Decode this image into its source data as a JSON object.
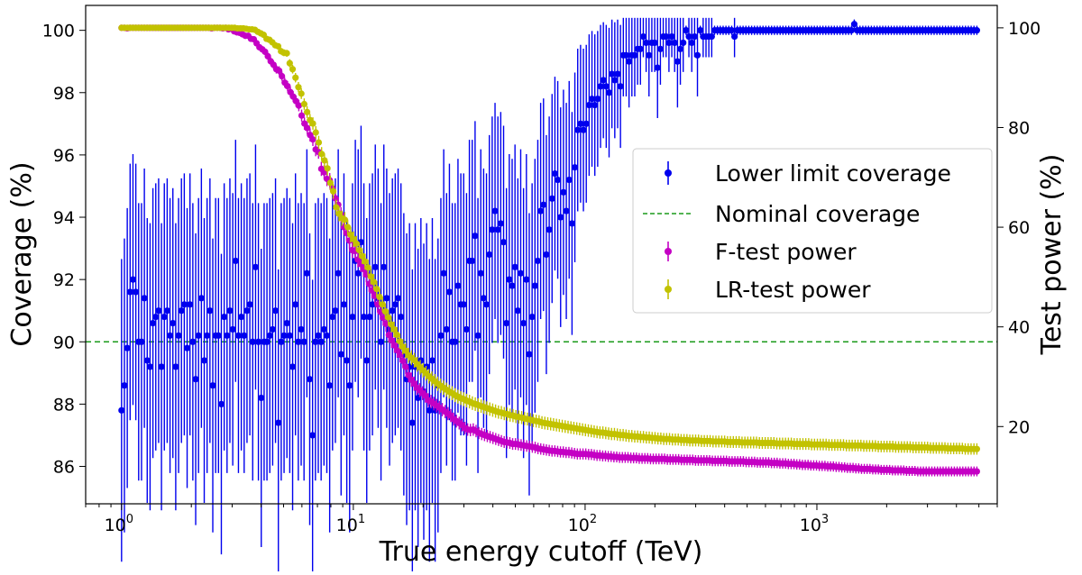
{
  "chart_data": {
    "type": "scatter",
    "title": "",
    "xlabel": "True energy cutoff (TeV)",
    "ylabel": "Coverage (%)",
    "y2label": "Test power (%)",
    "xscale": "log",
    "xlim": [
      0.7,
      6000
    ],
    "ylim": [
      84.8,
      100.8
    ],
    "y2lim": [
      4.5,
      104.5
    ],
    "grid": false,
    "legend_position": "center-right",
    "x_ticks": [
      {
        "value": 1,
        "base": "10",
        "exp": "0"
      },
      {
        "value": 10,
        "base": "10",
        "exp": "1"
      },
      {
        "value": 100,
        "base": "10",
        "exp": "2"
      },
      {
        "value": 1000,
        "base": "10",
        "exp": "3"
      }
    ],
    "y_ticks": [
      "86",
      "88",
      "90",
      "92",
      "94",
      "96",
      "98",
      "100"
    ],
    "y2_ticks": [
      "20",
      "40",
      "60",
      "80",
      "100"
    ],
    "nominal_coverage": 90,
    "series": [
      {
        "name": "Lower limit coverage",
        "color": "#0000ee",
        "axis": "left",
        "style": "errorbar",
        "x_start": 1.0,
        "x_end": 4900,
        "values": [
          87.8,
          88.6,
          89.8,
          91.6,
          92.0,
          91.6,
          90.0,
          90.0,
          91.4,
          89.4,
          89.2,
          90.6,
          90.8,
          91.0,
          89.2,
          90.8,
          91.0,
          90.2,
          90.6,
          89.2,
          90.2,
          91.0,
          91.2,
          89.8,
          91.2,
          90.0,
          88.8,
          90.2,
          91.4,
          89.4,
          90.2,
          91.0,
          88.6,
          90.2,
          90.2,
          88.0,
          90.8,
          90.2,
          91.0,
          90.4,
          92.6,
          90.2,
          90.8,
          90.2,
          91.0,
          91.2,
          90.0,
          92.4,
          90.0,
          88.2,
          90.0,
          90.0,
          90.2,
          90.4,
          91.0,
          87.4,
          90.0,
          90.2,
          90.6,
          90.2,
          89.2,
          91.2,
          90.0,
          90.4,
          90.0,
          92.2,
          88.8,
          87.0,
          90.0,
          90.2,
          90.0,
          90.4,
          90.2,
          88.6,
          90.8,
          91.0,
          92.2,
          89.6,
          91.2,
          89.4,
          88.6,
          90.8,
          92.6,
          92.2,
          93.2,
          90.8,
          89.4,
          90.8,
          91.2,
          92.4,
          91.4,
          90.0,
          92.4,
          91.4,
          90.4,
          91.0,
          91.2,
          91.4,
          90.8,
          89.6,
          88.8,
          89.2,
          87.4,
          89.2,
          88.2,
          89.4,
          88.4,
          89.2,
          87.8,
          89.4,
          87.8,
          88.6,
          90.2,
          92.2,
          90.4,
          91.6,
          90.0,
          90.0,
          91.8,
          91.2,
          91.2,
          90.4,
          92.6,
          92.6,
          93.4,
          90.2,
          92.2,
          91.4,
          91.2,
          92.8,
          93.6,
          94.2,
          93.6,
          93.8,
          93.2,
          90.6,
          92.0,
          91.8,
          92.4,
          91.0,
          92.2,
          90.6,
          92.0,
          89.6,
          90.8,
          91.8,
          92.6,
          94.2,
          94.4,
          92.8,
          93.6,
          94.6,
          95.4,
          95.2,
          94.0,
          94.8,
          94.2,
          95.2,
          93.8,
          95.6,
          96.8,
          97.0,
          96.8,
          97.0,
          97.6,
          97.8,
          97.6,
          97.8,
          98.2,
          98.4,
          98.2,
          98.0,
          98.6,
          98.4,
          98.6,
          98.2,
          99.2,
          99.2,
          99.0,
          99.2,
          99.2,
          99.4,
          99.4,
          99.8,
          99.6,
          99.2,
          99.6,
          99.6,
          98.8,
          99.4,
          99.8,
          99.8,
          99.6,
          99.8,
          99.6,
          99.0,
          99.4,
          99.6,
          100.0,
          99.8,
          99.6,
          99.8,
          99.2,
          100.0,
          99.8,
          99.8,
          99.8,
          99.8,
          100.0,
          100.0,
          100.0,
          100.0,
          100.0,
          100.0,
          100.0,
          99.8,
          100.0,
          100.0,
          100.0,
          100.0,
          100.0,
          100.0,
          100.0,
          100.0,
          100.0,
          100.0,
          100.0,
          100.0,
          100.0,
          100.0,
          100.0,
          100.0,
          100.0,
          100.0,
          100.0,
          100.0,
          100.0,
          100.0,
          100.0,
          100.0,
          100.0,
          100.0,
          100.0,
          100.0,
          100.0,
          100.0,
          100.0,
          100.0,
          100.0,
          100.0,
          100.0,
          100.0,
          100.0,
          100.0,
          100.0,
          100.0,
          100.0,
          100.2,
          100.0,
          100.0,
          100.0,
          100.0,
          100.0,
          100.0,
          100.0,
          100.0,
          100.0,
          100.0,
          100.0,
          100.0,
          100.0,
          100.0,
          100.0,
          100.0,
          100.0,
          100.0,
          100.0,
          100.0,
          100.0,
          100.0,
          100.0,
          100.0,
          100.0,
          100.0,
          100.0,
          100.0,
          100.0,
          100.0,
          100.0,
          100.0,
          100.0,
          100.0,
          100.0,
          100.0,
          100.0,
          100.0,
          100.0,
          100.0,
          100.0,
          100.0,
          100.0
        ]
      },
      {
        "name": "Nominal coverage",
        "color": "#1a9a1a",
        "axis": "left",
        "style": "dashed-line",
        "values": [
          90
        ]
      },
      {
        "name": "F-test power",
        "color": "#c400c4",
        "axis": "right",
        "style": "errorbar",
        "x_start": 1.0,
        "x_end": 4900,
        "values": [
          100,
          100,
          99.9,
          100,
          100,
          100,
          100,
          100,
          100,
          100,
          100,
          100,
          100,
          100,
          100,
          100,
          100,
          100,
          100,
          100,
          100,
          100,
          100,
          100,
          100,
          100,
          100,
          100,
          100,
          100,
          100,
          100,
          99.9,
          100,
          100,
          100,
          99.9,
          100,
          99.7,
          99.9,
          99.3,
          99.1,
          99.0,
          98.7,
          98.4,
          98.4,
          97.8,
          97.7,
          96.9,
          96.1,
          95.7,
          95.2,
          94.3,
          93.3,
          92.6,
          91.7,
          91.4,
          90.3,
          89.0,
          88.3,
          87.1,
          86.2,
          85.3,
          84.4,
          82.4,
          80.8,
          79.9,
          78.5,
          77.6,
          75.6,
          75.1,
          71.7,
          71.0,
          69.7,
          69.4,
          67.8,
          65.8,
          64.5,
          62.5,
          60.0,
          58.8,
          57.3,
          55.4,
          55.2,
          53.5,
          52.6,
          51.6,
          50.5,
          48.6,
          47.3,
          46.2,
          44.5,
          43.0,
          41.8,
          40.6,
          38.4,
          37.3,
          36.3,
          35.3,
          34.4,
          33.2,
          32.0,
          30.3,
          29.4,
          28.6,
          27.8,
          27.3,
          26.7,
          26.2,
          25.3,
          25.0,
          24.6,
          24.2,
          23.8,
          23.4,
          23.0,
          22.6,
          22.2,
          21.5,
          21.1,
          20.7,
          20.3,
          19.7,
          19.4,
          19.3,
          19.4,
          19.1,
          18.7,
          18.5,
          18.3,
          18.1,
          17.9,
          17.7,
          17.5,
          17.3,
          17.1,
          16.9,
          16.8,
          16.7,
          16.5,
          16.5,
          16.4,
          16.3,
          16.2,
          16.1,
          16.0,
          15.9,
          15.8,
          15.6,
          15.5,
          15.4,
          15.3,
          15.2,
          15.1,
          15.1,
          15.0,
          14.9,
          14.9,
          14.8,
          14.8,
          14.7,
          14.6,
          14.5,
          14.5,
          14.5,
          14.5,
          14.4,
          14.4,
          14.3,
          14.2,
          14.2,
          14.1,
          14.1,
          14.0,
          14.0,
          13.9,
          13.9,
          13.8,
          13.8,
          13.8,
          13.8,
          13.7,
          13.7,
          13.7,
          13.6,
          13.6,
          13.6,
          13.6,
          13.5,
          13.5,
          13.5,
          13.5,
          13.5,
          13.5,
          13.4,
          13.4,
          13.4,
          13.4,
          13.4,
          13.3,
          13.3,
          13.3,
          13.3,
          13.3,
          13.2,
          13.2,
          13.2,
          13.2,
          13.2,
          13.2,
          13.1,
          13.1,
          13.1,
          13.1,
          13.1,
          13.1,
          13.0,
          13.0,
          13.0,
          13.0,
          13.0,
          13.0,
          12.9,
          12.9,
          12.9,
          12.9,
          12.8,
          12.8,
          12.8,
          12.8,
          12.8,
          12.7,
          12.7,
          12.7,
          12.6,
          12.6,
          12.6,
          12.5,
          12.5,
          12.5,
          12.4,
          12.4,
          12.3,
          12.3,
          12.3,
          12.2,
          12.2,
          12.2,
          12.1,
          12.1,
          12.1,
          12.0,
          12.0,
          12.0,
          11.9,
          11.9,
          11.8,
          11.8,
          11.7,
          11.7,
          11.7,
          11.6,
          11.6,
          11.5,
          11.5,
          11.5,
          11.5,
          11.4,
          11.4,
          11.4,
          11.3,
          11.3,
          11.3,
          11.3,
          11.2,
          11.2,
          11.2,
          11.2,
          11.2,
          11.1,
          11.1,
          11.1,
          11.1,
          11.0,
          11.0,
          11.0,
          11.0,
          11.0,
          11.0,
          11.0,
          11.0,
          11.0,
          11.0,
          11.0,
          11.0,
          11.0,
          11.0,
          11.0,
          11.0,
          11.0,
          11.0,
          11.0,
          11.0,
          11.0,
          11.0
        ]
      },
      {
        "name": "LR-test power",
        "color": "#c2c200",
        "axis": "right",
        "style": "errorbar",
        "x_start": 1.0,
        "x_end": 4900,
        "values": [
          100,
          100,
          100,
          100,
          100,
          100,
          100,
          100,
          100,
          100,
          100,
          100,
          100,
          100,
          100,
          100,
          100,
          100,
          100,
          100,
          100,
          100,
          100,
          100,
          100,
          100,
          100,
          100,
          100,
          100,
          100,
          100,
          100,
          100,
          100,
          100,
          100,
          100,
          100,
          100,
          99.9,
          99.9,
          99.9,
          99.8,
          99.7,
          99.7,
          99.6,
          99.2,
          98.9,
          98.6,
          97.8,
          97.6,
          97.1,
          96.5,
          96.3,
          95.3,
          95.0,
          94.9,
          92.9,
          91.7,
          90.0,
          88.1,
          86.8,
          84.7,
          83.1,
          81.5,
          80.8,
          79.0,
          77.0,
          74.7,
          73.4,
          71.8,
          68.9,
          67.2,
          64.0,
          62.7,
          61.8,
          61.5,
          60.0,
          58.5,
          57.6,
          56.7,
          55.4,
          54.2,
          53.1,
          51.9,
          50.1,
          49.0,
          47.6,
          46.0,
          44.5,
          43.1,
          41.9,
          40.5,
          39.5,
          38.4,
          37.1,
          36.0,
          35.2,
          34.3,
          33.8,
          33.3,
          32.5,
          31.9,
          31.3,
          30.7,
          30.1,
          29.6,
          29.1,
          28.6,
          28.2,
          27.8,
          27.4,
          27.0,
          26.7,
          26.3,
          26.0,
          25.7,
          25.5,
          25.2,
          25.0,
          24.7,
          24.5,
          24.3,
          24.1,
          23.9,
          23.7,
          23.5,
          23.3,
          23.1,
          22.9,
          22.8,
          22.6,
          22.5,
          22.3,
          22.2,
          22.0,
          21.9,
          21.8,
          21.6,
          21.5,
          21.4,
          21.2,
          21.1,
          21.0,
          20.8,
          20.7,
          20.6,
          20.5,
          20.4,
          20.3,
          20.2,
          20.1,
          20.0,
          19.9,
          19.8,
          19.7,
          19.6,
          19.5,
          19.4,
          19.3,
          19.2,
          19.1,
          19.0,
          18.9,
          18.8,
          18.8,
          18.7,
          18.6,
          18.5,
          18.5,
          18.4,
          18.3,
          18.3,
          18.2,
          18.1,
          18.1,
          18.0,
          18.0,
          17.9,
          17.9,
          17.8,
          17.8,
          17.7,
          17.7,
          17.6,
          17.6,
          17.5,
          17.5,
          17.5,
          17.4,
          17.4,
          17.4,
          17.3,
          17.3,
          17.3,
          17.2,
          17.2,
          17.2,
          17.2,
          17.1,
          17.1,
          17.1,
          17.1,
          17.0,
          17.0,
          17.0,
          17.0,
          17.0,
          16.9,
          16.9,
          16.9,
          16.9,
          16.9,
          16.8,
          16.8,
          16.8,
          16.8,
          16.8,
          16.8,
          16.7,
          16.7,
          16.7,
          16.7,
          16.7,
          16.7,
          16.6,
          16.6,
          16.6,
          16.6,
          16.6,
          16.6,
          16.5,
          16.5,
          16.5,
          16.5,
          16.5,
          16.5,
          16.4,
          16.4,
          16.4,
          16.4,
          16.4,
          16.4,
          16.3,
          16.3,
          16.3,
          16.3,
          16.3,
          16.3,
          16.2,
          16.2,
          16.2,
          16.2,
          16.2,
          16.2,
          16.1,
          16.1,
          16.1,
          16.1,
          16.1,
          16.0,
          16.0,
          16.0,
          16.0,
          16.0,
          16.0,
          15.9,
          15.9,
          15.9,
          15.9,
          15.9,
          15.9,
          15.8,
          15.8,
          15.8,
          15.8,
          15.8,
          15.8,
          15.7,
          15.7,
          15.7,
          15.7,
          15.7,
          15.7,
          15.6,
          15.6,
          15.6,
          15.6,
          15.6,
          15.6,
          15.5,
          15.5,
          15.5,
          15.5,
          15.5
        ]
      }
    ]
  }
}
